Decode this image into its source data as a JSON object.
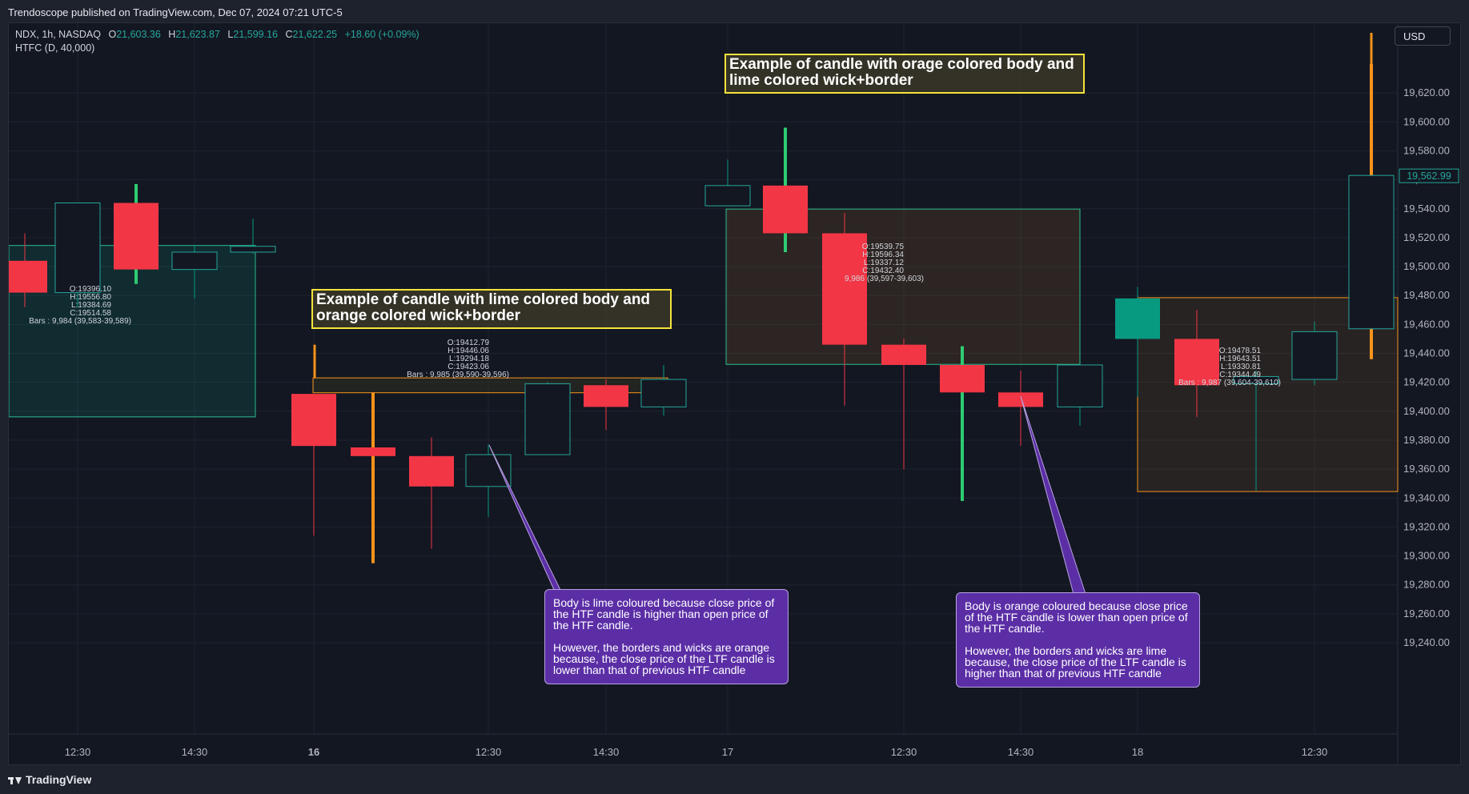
{
  "header": {
    "publisher": "Trendoscope published on TradingView.com, Dec 07, 2024 07:21 UTC-5"
  },
  "legend": {
    "symbol": "NDX, 1h, NASDAQ",
    "o_label": "O",
    "o_value": "21,603.36",
    "h_label": "H",
    "h_value": "21,623.87",
    "l_label": "L",
    "l_value": "21,599.16",
    "c_label": "C",
    "c_value": "21,622.25",
    "change": "+18.60 (+0.09%)",
    "indicator": "HTFC (D, 40,000)"
  },
  "currency_button": "USD",
  "annotations": {
    "top_right": "Example of candle with orage colored body and lime colored wick+border",
    "mid_left": "Example of candle with lime colored body and orange colored wick+border",
    "callout_left_p1": "Body is lime coloured because close price of the HTF candle is higher than open price of the HTF candle.",
    "callout_left_p2": "However, the borders and wicks are orange because, the close price of the LTF candle is lower than that of previous HTF candle",
    "callout_right_p1": "Body is orange coloured because close price of the HTF candle is lower than open price of the HTF candle.",
    "callout_right_p2": "However, the borders and wicks are lime because, the close price of the LTF candle is higher than that of previous HTF candle"
  },
  "footer": {
    "brand": "TradingView"
  },
  "colors": {
    "bg": "#131722",
    "grid": "#1f2330",
    "up": "#089981",
    "down": "#f23645",
    "lime": "#2ecc71",
    "orange": "#f7931a",
    "htf_green_border": "#2bbd8e",
    "yellow": "#f5e33a"
  },
  "chart_data": {
    "type": "candlestick",
    "y_axis": {
      "min": 19230,
      "max": 19640,
      "ticks": [
        19240,
        19260,
        19280,
        19300,
        19320,
        19340,
        19360,
        19380,
        19400,
        19420,
        19440,
        19460,
        19480,
        19500,
        19520,
        19540,
        19560,
        19580,
        19600,
        19620
      ]
    },
    "x_axis": {
      "tick_labels": [
        "12:30",
        "14:30",
        "16",
        "12:30",
        "14:30",
        "17",
        "12:30",
        "14:30",
        "18",
        "12:30"
      ],
      "bold": [
        "16"
      ]
    },
    "last_price": "19,562.99",
    "candles": [
      {
        "o": 19504,
        "h": 19523,
        "l": 19472,
        "c": 19482,
        "col": "down"
      },
      {
        "o": 19482,
        "h": 19544,
        "l": 19472,
        "c": 19544,
        "col": "hollow"
      },
      {
        "o": 19544,
        "h": 19557,
        "l": 19488,
        "c": 19498,
        "col": "down",
        "wick": "lime"
      },
      {
        "o": 19498,
        "h": 19515,
        "l": 19478,
        "c": 19510,
        "col": "hollow"
      },
      {
        "o": 19510,
        "h": 19533,
        "l": 19509,
        "c": 19514,
        "col": "hollow"
      },
      {
        "o": 19412,
        "h": 19412,
        "l": 19314,
        "c": 19376,
        "col": "down"
      },
      {
        "o": 19375,
        "h": 19413,
        "l": 19295,
        "c": 19369,
        "col": "down",
        "wick": "orange"
      },
      {
        "o": 19369,
        "h": 19382,
        "l": 19305,
        "c": 19348,
        "col": "down"
      },
      {
        "o": 19348,
        "h": 19377,
        "l": 19327,
        "c": 19370,
        "col": "hollow"
      },
      {
        "o": 19370,
        "h": 19420,
        "l": 19370,
        "c": 19419,
        "col": "hollow"
      },
      {
        "o": 19418,
        "h": 19422,
        "l": 19387,
        "c": 19403,
        "col": "down"
      },
      {
        "o": 19403,
        "h": 19432,
        "l": 19397,
        "c": 19422,
        "col": "hollow"
      },
      {
        "o": 19542,
        "h": 19574,
        "l": 19542,
        "c": 19556,
        "col": "hollow"
      },
      {
        "o": 19556,
        "h": 19596,
        "l": 19510,
        "c": 19523,
        "col": "down",
        "wick": "lime"
      },
      {
        "o": 19523,
        "h": 19537,
        "l": 19404,
        "c": 19446,
        "col": "down"
      },
      {
        "o": 19446,
        "h": 19450,
        "l": 19360,
        "c": 19432,
        "col": "down"
      },
      {
        "o": 19432,
        "h": 19445,
        "l": 19338,
        "c": 19413,
        "col": "down",
        "wick": "lime"
      },
      {
        "o": 19413,
        "h": 19428,
        "l": 19376,
        "c": 19403,
        "col": "down"
      },
      {
        "o": 19403,
        "h": 19432,
        "l": 19390,
        "c": 19432,
        "col": "hollow"
      },
      {
        "o": 19450,
        "h": 19486,
        "l": 19410,
        "c": 19478,
        "col": "up"
      },
      {
        "o": 19450,
        "h": 19470,
        "l": 19396,
        "c": 19418,
        "col": "down"
      },
      {
        "o": 19419,
        "h": 19428,
        "l": 19345,
        "c": 19424,
        "col": "hollow"
      },
      {
        "o": 19422,
        "h": 19462,
        "l": 19418,
        "c": 19455,
        "col": "hollow"
      },
      {
        "o": 19457,
        "h": 19640,
        "l": 19436,
        "c": 19563,
        "col": "hollow",
        "wick": "orange"
      }
    ],
    "htf_boxes": [
      {
        "o": 19396.1,
        "h": 19556.8,
        "l": 19384.69,
        "c": 19514.58,
        "label": "O:19396.10\nH:19556.80\nL:19384.69\nC:19514.58\nBars : 9,984 (39,583-39,589)",
        "style": "green"
      },
      {
        "o": 19412.79,
        "h": 19446.06,
        "l": 19294.18,
        "c": 19423.06,
        "label": "O:19412.79\nH:19446.06\nL:19294.18\nC:19423.06\nBars : 9,985 (39,590-39,596)",
        "style": "lime-body-orange-border"
      },
      {
        "o": 19539.75,
        "h": 19596.34,
        "l": 19337.12,
        "c": 19432.4,
        "label": "O:19539.75\nH:19596.34\nL:19337.12\nC:19432.40\n9,986 (39,597-39,603)",
        "style": "orange-body-lime-border"
      },
      {
        "o": 19478.51,
        "h": 19643.51,
        "l": 19330.81,
        "c": 19344.49,
        "label": "O:19478.51\nH:19643.51\nL:19330.81\nC:19344.49\nBars : 9,987 (39,604-39,610)",
        "style": "orange"
      }
    ]
  }
}
